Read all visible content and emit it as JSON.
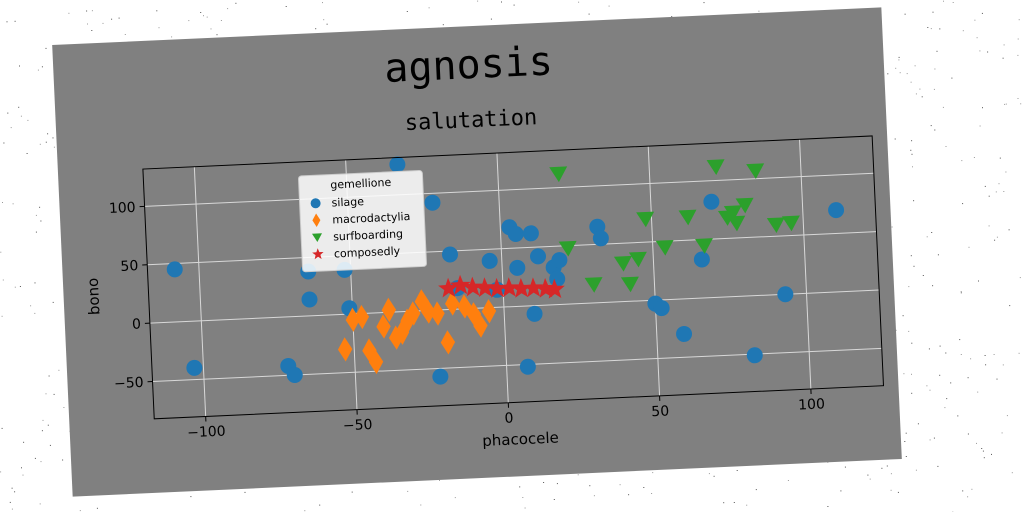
{
  "chart_data": {
    "type": "scatter",
    "title": "agnosis",
    "subtitle": "salutation",
    "xlabel": "phacocele",
    "ylabel": "bono",
    "xlim": [
      -117,
      124
    ],
    "ylim": [
      -82,
      132
    ],
    "xticks": [
      -100,
      -50,
      0,
      50,
      100
    ],
    "yticks": [
      -50,
      0,
      50,
      100
    ],
    "xtick_labels": [
      "−100",
      "−50",
      "0",
      "50",
      "100"
    ],
    "ytick_labels": [
      "−50",
      "0",
      "50",
      "100"
    ],
    "grid": true,
    "legend": {
      "title": "gemellione",
      "position": "top-center"
    },
    "series": [
      {
        "name": "silage",
        "marker": "circle",
        "color": "#1f77b4",
        "points": [
          [
            -108,
            45
          ],
          [
            -103,
            -40
          ],
          [
            -72,
            -42
          ],
          [
            -70,
            -50
          ],
          [
            -64,
            38
          ],
          [
            -64,
            14
          ],
          [
            -52,
            38
          ],
          [
            -51,
            5
          ],
          [
            -33,
            126
          ],
          [
            -22,
            -57
          ],
          [
            -22,
            92
          ],
          [
            -17,
            47
          ],
          [
            -15,
            18
          ],
          [
            -4,
            40
          ],
          [
            -2,
            15
          ],
          [
            3,
            68
          ],
          [
            5,
            62
          ],
          [
            5,
            33
          ],
          [
            7,
            -52
          ],
          [
            10,
            62
          ],
          [
            10,
            -7
          ],
          [
            12,
            42
          ],
          [
            17,
            32
          ],
          [
            18,
            22
          ],
          [
            19,
            38
          ],
          [
            32,
            65
          ],
          [
            33,
            55
          ],
          [
            50,
            -3
          ],
          [
            52,
            -7
          ],
          [
            59,
            -30
          ],
          [
            66,
            33
          ],
          [
            70,
            82
          ],
          [
            82,
            -51
          ],
          [
            93,
            0
          ],
          [
            111,
            70
          ]
        ]
      },
      {
        "name": "macrodactylia",
        "marker": "diamond",
        "color": "#ff7f0e",
        "points": [
          [
            -53,
            -30
          ],
          [
            -50,
            -5
          ],
          [
            -47,
            -3
          ],
          [
            -45,
            -32
          ],
          [
            -43,
            -42
          ],
          [
            -40,
            -12
          ],
          [
            -38,
            2
          ],
          [
            -36,
            -22
          ],
          [
            -34,
            -18
          ],
          [
            -32,
            -8
          ],
          [
            -30,
            -2
          ],
          [
            -27,
            8
          ],
          [
            -25,
            -1
          ],
          [
            -22,
            -3
          ],
          [
            -19,
            -28
          ],
          [
            -17,
            5
          ],
          [
            -13,
            2
          ],
          [
            -10,
            -5
          ],
          [
            -8,
            -15
          ],
          [
            -5,
            -3
          ]
        ]
      },
      {
        "name": "surfboarding",
        "marker": "triangle-down",
        "color": "#2ca02c",
        "points": [
          [
            20,
            112
          ],
          [
            22,
            48
          ],
          [
            30,
            16
          ],
          [
            40,
            33
          ],
          [
            42,
            15
          ],
          [
            45,
            36
          ],
          [
            48,
            70
          ],
          [
            54,
            45
          ],
          [
            62,
            70
          ],
          [
            67,
            45
          ],
          [
            72,
            112
          ],
          [
            75,
            68
          ],
          [
            77,
            72
          ],
          [
            78,
            63
          ],
          [
            81,
            78
          ],
          [
            85,
            107
          ],
          [
            91,
            60
          ],
          [
            96,
            61
          ]
        ]
      },
      {
        "name": "composedly",
        "marker": "star",
        "color": "#d62728",
        "points": [
          [
            -18,
            18
          ],
          [
            -14,
            20
          ],
          [
            -10,
            18
          ],
          [
            -6,
            17
          ],
          [
            -2,
            16
          ],
          [
            2,
            16
          ],
          [
            6,
            15
          ],
          [
            10,
            15
          ],
          [
            14,
            14
          ],
          [
            17,
            13
          ]
        ]
      }
    ]
  }
}
